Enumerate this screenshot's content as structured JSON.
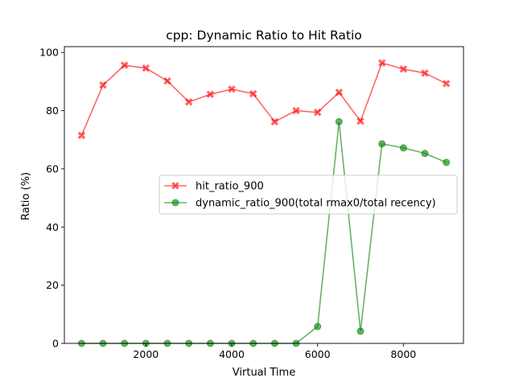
{
  "chart_data": {
    "type": "line",
    "title": "cpp: Dynamic Ratio to Hit Ratio",
    "xlabel": "Virtual Time",
    "ylabel": "Ratio (%)",
    "xlim": [
      100,
      9400
    ],
    "ylim": [
      0,
      102
    ],
    "xticks": [
      2000,
      4000,
      6000,
      8000
    ],
    "yticks": [
      0,
      20,
      40,
      60,
      80,
      100
    ],
    "grid": false,
    "legend_position": "center-right",
    "x": [
      500,
      1000,
      1500,
      2000,
      2500,
      3000,
      3500,
      4000,
      4500,
      5000,
      5500,
      6000,
      6500,
      7000,
      7500,
      8000,
      8500,
      9000
    ],
    "series": [
      {
        "name": "hit_ratio_900",
        "color": "#ff0000",
        "marker": "x",
        "values": [
          71.5,
          88.8,
          95.6,
          94.6,
          90.2,
          83.0,
          85.6,
          87.4,
          85.8,
          76.2,
          80.0,
          79.4,
          86.3,
          76.4,
          96.4,
          94.3,
          92.9,
          89.3
        ]
      },
      {
        "name": "dynamic_ratio_900(total rmax0/total recency)",
        "color": "#008000",
        "marker": "o",
        "values": [
          0,
          0,
          0,
          0,
          0,
          0,
          0,
          0,
          0,
          0,
          0,
          5.8,
          76.2,
          4.2,
          68.6,
          67.2,
          65.3,
          62.2
        ]
      }
    ]
  }
}
